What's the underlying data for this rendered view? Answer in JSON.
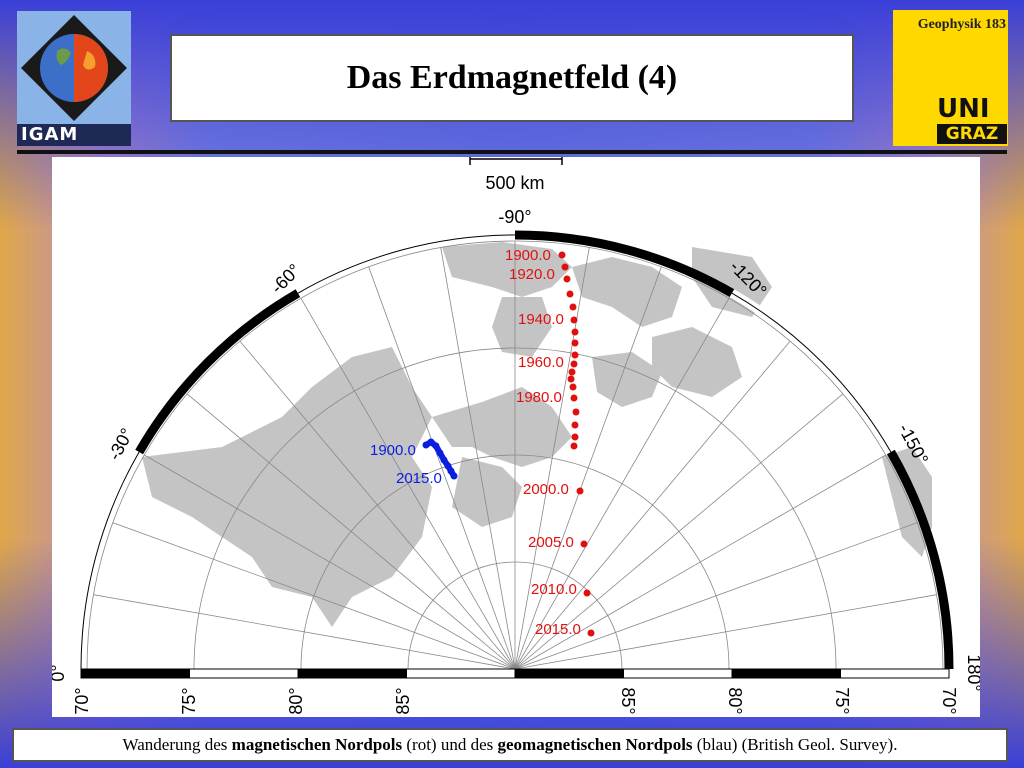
{
  "header": {
    "title": "Das Erdmagnetfeld (4)",
    "slide_label": "Geophysik 183",
    "logo_left_text": "IGAM",
    "logo_right_uni": "UNI",
    "logo_right_graz": "GRAZ"
  },
  "map": {
    "scale_label": "500 km",
    "longitude_labels": [
      "-90°",
      "-60°",
      "-120°",
      "-30°",
      "-150°",
      "0°",
      "180°"
    ],
    "latitude_labels": [
      "70°",
      "75°",
      "80°",
      "85°",
      "85°",
      "80°",
      "75°",
      "70°"
    ],
    "north_pole_label": "Nordpol (rot)",
    "geomagnetic_pole_label": "geomagnetischer Nordpol (blau)",
    "red_labels": [
      "1900.0",
      "1920.0",
      "1940.0",
      "1960.0",
      "1980.0",
      "2000.0",
      "2005.0",
      "2010.0",
      "2015.0"
    ],
    "blue_labels": [
      "1900.0",
      "2015.0"
    ],
    "colors": {
      "north_pole": "#e01010",
      "geomagnetic_pole": "#0a1ee0",
      "land": "#c4c4c4"
    }
  },
  "caption": {
    "prefix": "Wanderung des ",
    "bold1": "magnetischen Nordpols",
    "mid": " (rot) und des ",
    "bold2": "geomagnetischen Nordpols",
    "suffix": " (blau) (British Geol. Survey)."
  }
}
